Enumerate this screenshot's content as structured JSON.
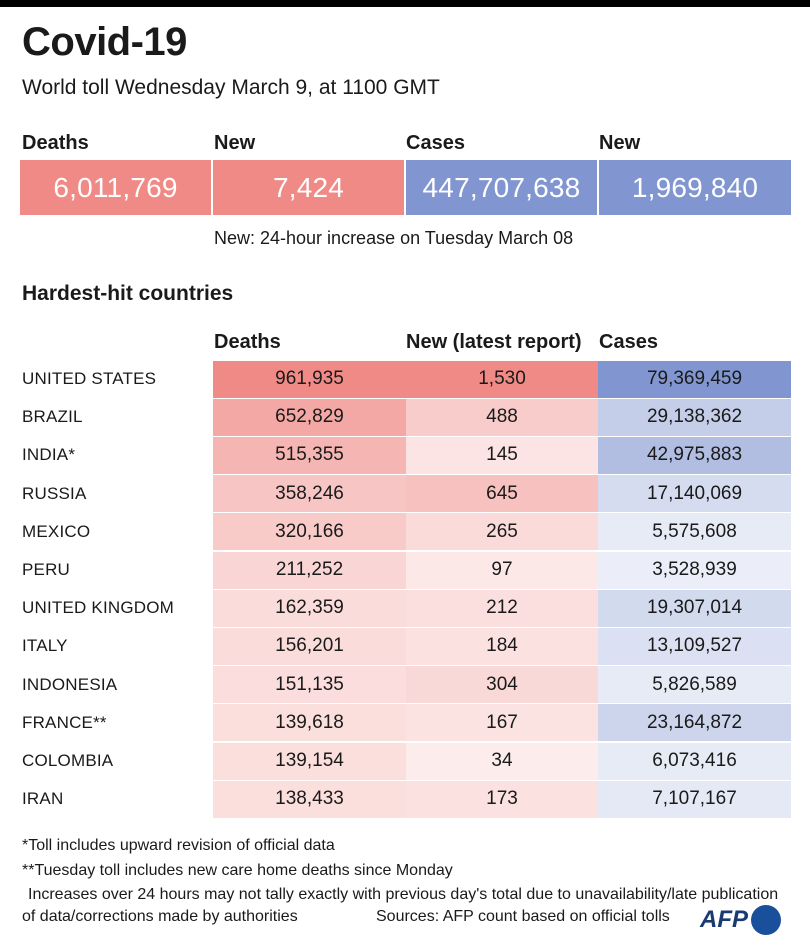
{
  "title": "Covid-19",
  "subtitle": "World toll Wednesday March 9, at 1100 GMT",
  "summary": {
    "deaths_label": "Deaths",
    "deaths_value": "6,011,769",
    "new_deaths_label": "New",
    "new_deaths_value": "7,424",
    "cases_label": "Cases",
    "cases_value": "447,707,638",
    "new_cases_label": "New",
    "new_cases_value": "1,969,840",
    "note": "New: 24-hour increase on Tuesday March 08"
  },
  "colors": {
    "deaths_accent": "#f08a86",
    "cases_accent": "#8196d0"
  },
  "chart_data": {
    "type": "table",
    "title": "Hardest-hit countries",
    "columns": [
      "Deaths",
      "New (latest report)",
      "Cases"
    ],
    "rows": [
      {
        "country": "UNITED STATES",
        "deaths": "961,935",
        "new": "1,530",
        "cases": "79,369,459",
        "deaths_n": 961935,
        "new_n": 1530,
        "cases_n": 79369459
      },
      {
        "country": "BRAZIL",
        "deaths": "652,829",
        "new": "488",
        "cases": "29,138,362",
        "deaths_n": 652829,
        "new_n": 488,
        "cases_n": 29138362
      },
      {
        "country": "INDIA*",
        "deaths": "515,355",
        "new": "145",
        "cases": "42,975,883",
        "deaths_n": 515355,
        "new_n": 145,
        "cases_n": 42975883
      },
      {
        "country": "RUSSIA",
        "deaths": "358,246",
        "new": "645",
        "cases": "17,140,069",
        "deaths_n": 358246,
        "new_n": 645,
        "cases_n": 17140069
      },
      {
        "country": "MEXICO",
        "deaths": "320,166",
        "new": "265",
        "cases": "5,575,608",
        "deaths_n": 320166,
        "new_n": 265,
        "cases_n": 5575608
      },
      {
        "country": "PERU",
        "deaths": "211,252",
        "new": "97",
        "cases": "3,528,939",
        "deaths_n": 211252,
        "new_n": 97,
        "cases_n": 3528939
      },
      {
        "country": "UNITED KINGDOM",
        "deaths": "162,359",
        "new": "212",
        "cases": "19,307,014",
        "deaths_n": 162359,
        "new_n": 212,
        "cases_n": 19307014
      },
      {
        "country": "ITALY",
        "deaths": "156,201",
        "new": "184",
        "cases": "13,109,527",
        "deaths_n": 156201,
        "new_n": 184,
        "cases_n": 13109527
      },
      {
        "country": "INDONESIA",
        "deaths": "151,135",
        "new": "304",
        "cases": "5,826,589",
        "deaths_n": 151135,
        "new_n": 304,
        "cases_n": 5826589
      },
      {
        "country": "FRANCE**",
        "deaths": "139,618",
        "new": "167",
        "cases": "23,164,872",
        "deaths_n": 139618,
        "new_n": 167,
        "cases_n": 23164872
      },
      {
        "country": "COLOMBIA",
        "deaths": "139,154",
        "new": "34",
        "cases": "6,073,416",
        "deaths_n": 139154,
        "new_n": 34,
        "cases_n": 6073416
      },
      {
        "country": "IRAN",
        "deaths": "138,433",
        "new": "173",
        "cases": "7,107,167",
        "deaths_n": 138433,
        "new_n": 173,
        "cases_n": 7107167
      }
    ]
  },
  "footnotes": {
    "f1": "*Toll includes upward revision of official data",
    "f2": "**Tuesday toll includes new care home deaths since Monday",
    "f3": "Increases over 24 hours may not tally exactly with previous day's total due to unavailability/late publication",
    "f4": "of data/corrections made by authorities",
    "source": "Sources: AFP count based on official tolls"
  },
  "logo": "AFP"
}
